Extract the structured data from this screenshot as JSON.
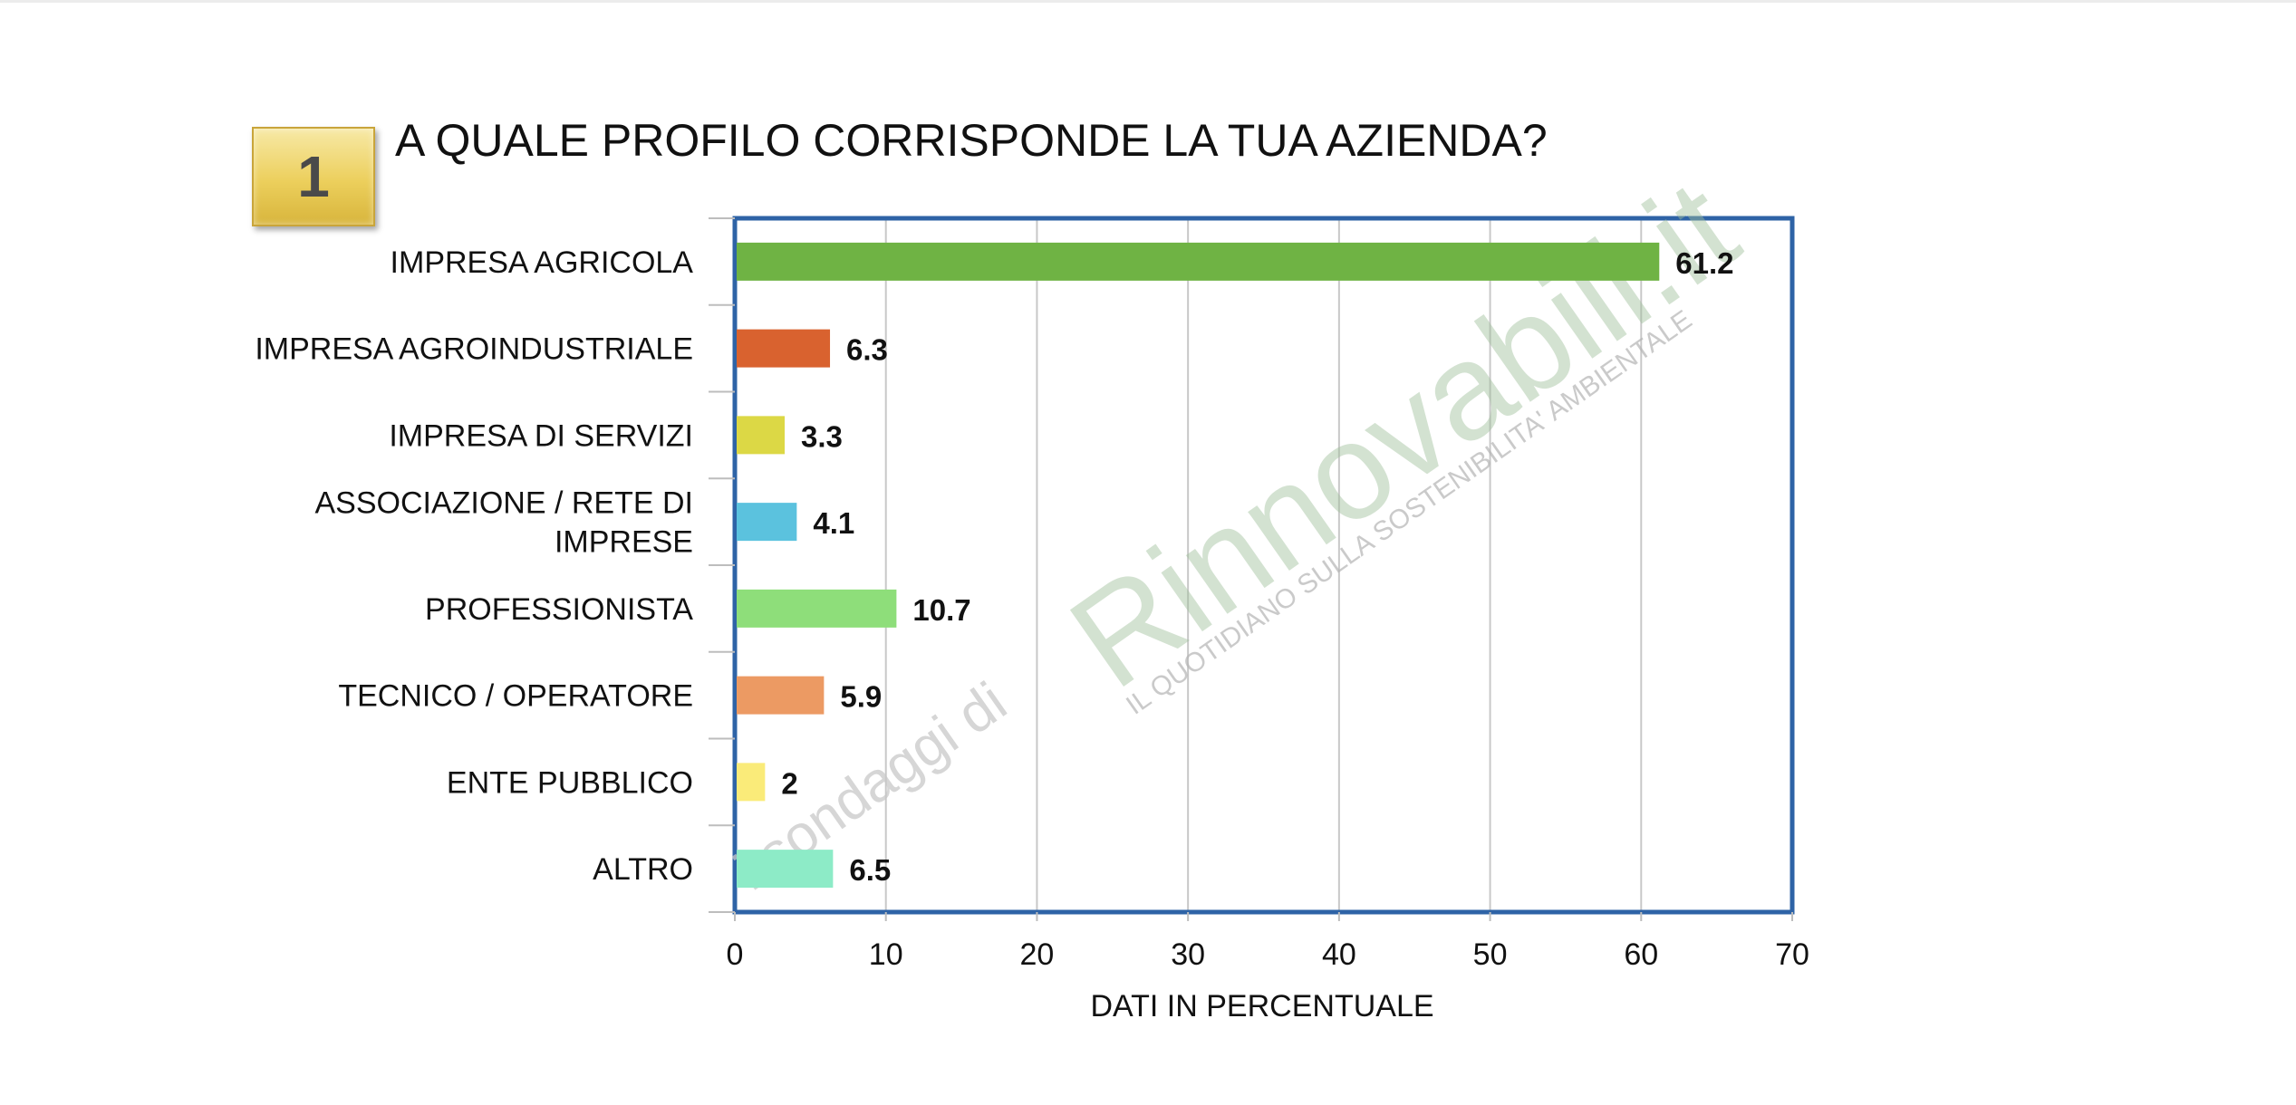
{
  "badge": {
    "number": "1"
  },
  "title": "A QUALE PROFILO CORRISPONDE LA TUA AZIENDA?",
  "watermark": {
    "prefix": "i sondaggi di",
    "brand": "Rinnovabili.it",
    "tagline": "IL QUOTIDIANO SULLA SOSTENIBILITA' AMBIENTALE"
  },
  "chart_data": {
    "type": "bar",
    "orientation": "horizontal",
    "categories": [
      "IMPRESA AGRICOLA",
      "IMPRESA AGROINDUSTRIALE",
      "IMPRESA DI SERVIZI",
      "ASSOCIAZIONE / RETE DI IMPRESE",
      "PROFESSIONISTA",
      "TECNICO / OPERATORE",
      "ENTE PUBBLICO",
      "ALTRO"
    ],
    "category_lines": [
      [
        "IMPRESA AGRICOLA"
      ],
      [
        "IMPRESA AGROINDUSTRIALE"
      ],
      [
        "IMPRESA DI SERVIZI"
      ],
      [
        "ASSOCIAZIONE / RETE DI",
        "IMPRESE"
      ],
      [
        "PROFESSIONISTA"
      ],
      [
        "TECNICO / OPERATORE"
      ],
      [
        "ENTE PUBBLICO"
      ],
      [
        "ALTRO"
      ]
    ],
    "values": [
      61.2,
      6.3,
      3.3,
      4.1,
      10.7,
      5.9,
      2,
      6.5
    ],
    "value_labels": [
      "61.2",
      "6.3",
      "3.3",
      "4.1",
      "10.7",
      "5.9",
      "2",
      "6.5"
    ],
    "colors": [
      "#6fb344",
      "#d9622f",
      "#dcd845",
      "#5bc2de",
      "#8ede7a",
      "#ec9a63",
      "#faeb79",
      "#8debc7"
    ],
    "xlabel": "DATI IN PERCENTUALE",
    "ylabel": "",
    "xlim": [
      0,
      70
    ],
    "xticks": [
      0,
      10,
      20,
      30,
      40,
      50,
      60,
      70
    ],
    "grid": true,
    "legend": "none",
    "frame_color": "#2e63a6"
  }
}
